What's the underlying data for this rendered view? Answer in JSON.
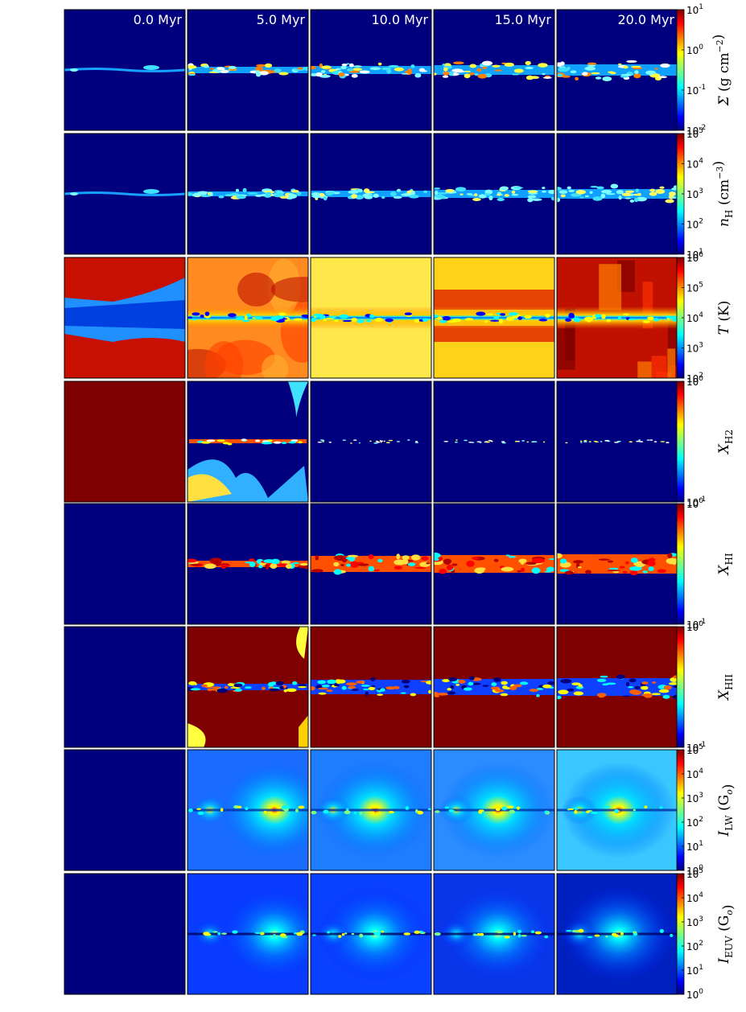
{
  "chart_data": {
    "type": "heatmap",
    "columns": [
      "0.0 Myr",
      "5.0 Myr",
      "10.0 Myr",
      "15.0 Myr",
      "20.0 Myr"
    ],
    "colormap": "jet",
    "colormap_stops": [
      "#00007f",
      "#0000ff",
      "#007fff",
      "#00ffff",
      "#7fff7f",
      "#ffff00",
      "#ff7f00",
      "#ff0000",
      "#7f0000"
    ],
    "rows": [
      {
        "id": "sigma",
        "quantity": "Σ",
        "unit": "(g cm",
        "unit_exp": "−2",
        "unit_close": ")",
        "ticks": [
          {
            "base": "10",
            "exp": "1"
          },
          {
            "base": "10",
            "exp": "0"
          },
          {
            "base": "10",
            "exp": "-1"
          },
          {
            "base": "10",
            "exp": "-2"
          }
        ],
        "cbar_range": [
          0.01,
          10
        ],
        "scale": "log"
      },
      {
        "id": "nh",
        "quantity": "n",
        "quantity_sub": "H",
        "unit": "(cm",
        "unit_exp": "−3",
        "unit_close": ")",
        "ticks": [
          {
            "base": "10",
            "exp": "5"
          },
          {
            "base": "10",
            "exp": "4"
          },
          {
            "base": "10",
            "exp": "3"
          },
          {
            "base": "10",
            "exp": "2"
          },
          {
            "base": "10",
            "exp": "1"
          }
        ],
        "cbar_range": [
          1,
          1000000
        ],
        "scale": "log"
      },
      {
        "id": "temp",
        "quantity": "T",
        "unit": "(K)",
        "ticks": [
          {
            "base": "10",
            "exp": "6"
          },
          {
            "base": "10",
            "exp": "5"
          },
          {
            "base": "10",
            "exp": "4"
          },
          {
            "base": "10",
            "exp": "3"
          },
          {
            "base": "10",
            "exp": "2"
          }
        ],
        "cbar_range": [
          10,
          3000000
        ],
        "scale": "log"
      },
      {
        "id": "xh2",
        "quantity": "X",
        "quantity_sub": "H2",
        "ticks": [
          {
            "base": "10",
            "exp": "0"
          },
          {
            "base": "10",
            "exp": "-1"
          }
        ],
        "cbar_range": [
          0.1,
          1
        ],
        "scale": "log"
      },
      {
        "id": "xhi",
        "quantity": "X",
        "quantity_sub": "HI",
        "ticks": [
          {
            "base": "10",
            "exp": "0"
          },
          {
            "base": "10",
            "exp": "-1"
          }
        ],
        "cbar_range": [
          0.1,
          1
        ],
        "scale": "log"
      },
      {
        "id": "xhii",
        "quantity": "X",
        "quantity_sub": "HII",
        "ticks": [
          {
            "base": "10",
            "exp": "0"
          },
          {
            "base": "10",
            "exp": "-1"
          }
        ],
        "cbar_range": [
          0.1,
          1
        ],
        "scale": "log"
      },
      {
        "id": "ilw",
        "quantity": "I",
        "quantity_sub": "LW",
        "unit": "(G",
        "unit_sub": "o",
        "unit_close": ")",
        "ticks": [
          {
            "base": "10",
            "exp": "5"
          },
          {
            "base": "10",
            "exp": "4"
          },
          {
            "base": "10",
            "exp": "3"
          },
          {
            "base": "10",
            "exp": "2"
          },
          {
            "base": "10",
            "exp": "1"
          },
          {
            "base": "10",
            "exp": "0"
          }
        ],
        "cbar_range": [
          1,
          100000
        ],
        "scale": "log"
      },
      {
        "id": "ieuv",
        "quantity": "I",
        "quantity_sub": "EUV",
        "unit": "(G",
        "unit_sub": "o",
        "unit_close": ")",
        "ticks": [
          {
            "base": "10",
            "exp": "5"
          },
          {
            "base": "10",
            "exp": "4"
          },
          {
            "base": "10",
            "exp": "3"
          },
          {
            "base": "10",
            "exp": "2"
          },
          {
            "base": "10",
            "exp": "1"
          },
          {
            "base": "10",
            "exp": "0"
          }
        ],
        "cbar_range": [
          1,
          100000
        ],
        "scale": "log"
      }
    ]
  }
}
